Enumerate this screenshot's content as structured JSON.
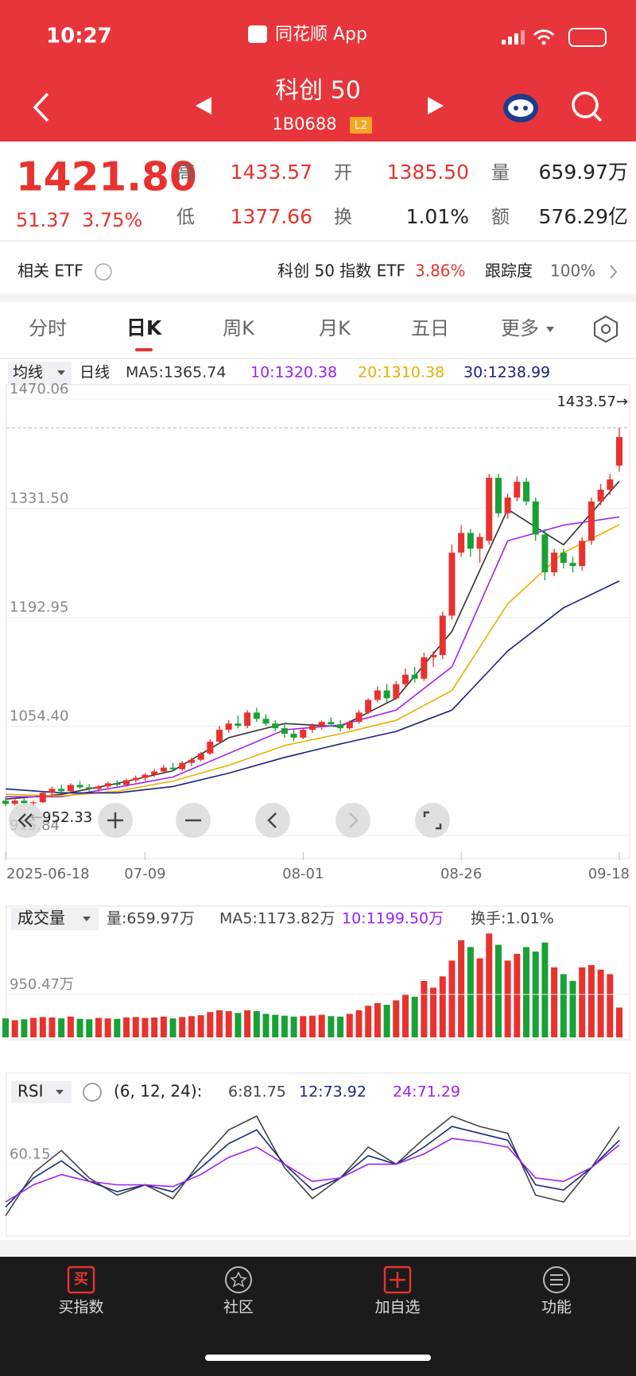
{
  "status": {
    "time": "10:27",
    "app": "同花顺 App"
  },
  "header": {
    "title": "科创 50",
    "code": "1B0688",
    "badge": "L2"
  },
  "quote": {
    "price": "1421.80",
    "change": "51.37",
    "change_pct": "3.75%",
    "fields": [
      {
        "label": "高",
        "value": "1433.57"
      },
      {
        "label": "开",
        "value": "1385.50"
      },
      {
        "label": "量",
        "value": "659.97万"
      },
      {
        "label": "低",
        "value": "1377.66"
      },
      {
        "label": "换",
        "value": "1.01%"
      },
      {
        "label": "额",
        "value": "576.29亿"
      }
    ]
  },
  "etf": {
    "label": "相关 ETF",
    "name": "科创 50 指数 ETF",
    "pct": "3.86%",
    "tracking_label": "跟踪度",
    "tracking": "100%"
  },
  "tabs": [
    "分时",
    "日K",
    "周K",
    "月K",
    "五日",
    "更多"
  ],
  "chart_data": [
    {
      "type": "candlestick",
      "selector": "均线",
      "period": "日线",
      "up_color": "#e8322f",
      "down_color": "#18a136",
      "xlim": [
        0,
        66
      ],
      "ylim": [
        915.84,
        1470.06
      ],
      "yticks": [
        915.84,
        {
          "value": 1054.4,
          "label": "1054.40"
        },
        1192.95,
        {
          "value": 1331.5,
          "label": "1331.50"
        },
        1470.06
      ],
      "xticks": [
        {
          "value": 0,
          "label": "2025-06-18"
        },
        {
          "value": 15,
          "label": "07-09"
        },
        {
          "value": 32,
          "label": "08-01"
        },
        {
          "value": 49,
          "label": "08-26"
        },
        {
          "value": 66,
          "label": "09-18"
        }
      ],
      "max_label": "1433.57→",
      "min_label": "←952.33",
      "ohlc": [
        [
          960,
          965,
          953,
          956
        ],
        [
          956,
          962,
          954,
          960
        ],
        [
          960,
          963,
          955,
          957
        ],
        [
          957,
          960,
          952.33,
          958
        ],
        [
          958,
          972,
          957,
          970
        ],
        [
          970,
          978,
          966,
          975
        ],
        [
          975,
          980,
          970,
          972
        ],
        [
          972,
          982,
          970,
          980
        ],
        [
          980,
          985,
          975,
          977
        ],
        [
          977,
          981,
          972,
          975
        ],
        [
          975,
          980,
          970,
          978
        ],
        [
          978,
          984,
          974,
          982
        ],
        [
          982,
          986,
          978,
          980
        ],
        [
          980,
          988,
          978,
          986
        ],
        [
          986,
          992,
          983,
          989
        ],
        [
          989,
          995,
          985,
          993
        ],
        [
          993,
          1000,
          990,
          997
        ],
        [
          997,
          1005,
          994,
          1002
        ],
        [
          1002,
          1008,
          998,
          1000
        ],
        [
          1000,
          1010,
          998,
          1008
        ],
        [
          1008,
          1015,
          1004,
          1012
        ],
        [
          1012,
          1022,
          1010,
          1020
        ],
        [
          1020,
          1038,
          1018,
          1035
        ],
        [
          1035,
          1055,
          1032,
          1050
        ],
        [
          1050,
          1062,
          1046,
          1058
        ],
        [
          1058,
          1068,
          1052,
          1055
        ],
        [
          1055,
          1075,
          1052,
          1072
        ],
        [
          1072,
          1078,
          1060,
          1064
        ],
        [
          1064,
          1070,
          1055,
          1058
        ],
        [
          1058,
          1062,
          1048,
          1052
        ],
        [
          1052,
          1058,
          1040,
          1045
        ],
        [
          1045,
          1050,
          1035,
          1040
        ],
        [
          1040,
          1052,
          1038,
          1050
        ],
        [
          1050,
          1058,
          1046,
          1055
        ],
        [
          1055,
          1062,
          1050,
          1060
        ],
        [
          1060,
          1066,
          1054,
          1057
        ],
        [
          1057,
          1062,
          1048,
          1052
        ],
        [
          1052,
          1062,
          1050,
          1060
        ],
        [
          1060,
          1075,
          1058,
          1072
        ],
        [
          1072,
          1090,
          1070,
          1088
        ],
        [
          1088,
          1105,
          1085,
          1100
        ],
        [
          1100,
          1108,
          1085,
          1090
        ],
        [
          1090,
          1112,
          1088,
          1108
        ],
        [
          1108,
          1128,
          1104,
          1120
        ],
        [
          1120,
          1130,
          1110,
          1115
        ],
        [
          1115,
          1148,
          1112,
          1142
        ],
        [
          1142,
          1150,
          1130,
          1145
        ],
        [
          1145,
          1200,
          1140,
          1195
        ],
        [
          1195,
          1285,
          1190,
          1275
        ],
        [
          1275,
          1310,
          1270,
          1300
        ],
        [
          1300,
          1305,
          1270,
          1280
        ],
        [
          1280,
          1300,
          1262,
          1295
        ],
        [
          1290,
          1375,
          1285,
          1370
        ],
        [
          1370,
          1375,
          1320,
          1325
        ],
        [
          1325,
          1350,
          1318,
          1345
        ],
        [
          1345,
          1372,
          1340,
          1365
        ],
        [
          1365,
          1370,
          1335,
          1340
        ],
        [
          1340,
          1345,
          1290,
          1298
        ],
        [
          1298,
          1305,
          1240,
          1250
        ],
        [
          1250,
          1280,
          1245,
          1275
        ],
        [
          1275,
          1280,
          1255,
          1262
        ],
        [
          1262,
          1270,
          1250,
          1258
        ],
        [
          1258,
          1295,
          1252,
          1290
        ],
        [
          1290,
          1345,
          1285,
          1340
        ],
        [
          1340,
          1362,
          1335,
          1355
        ],
        [
          1355,
          1375,
          1348,
          1368
        ],
        [
          1385.5,
          1433.57,
          1377.66,
          1421.8
        ]
      ],
      "series": [
        {
          "name": "MA5:1365.74",
          "color": "#333333",
          "x": [
            0,
            6,
            12,
            18,
            24,
            30,
            36,
            42,
            48,
            54,
            60,
            66
          ],
          "values": [
            962,
            968,
            982,
            998,
            1040,
            1058,
            1054,
            1090,
            1175,
            1330,
            1285,
            1365.74
          ]
        },
        {
          "name": "10:1320.38",
          "color": "#a020f0",
          "x": [
            0,
            6,
            12,
            18,
            24,
            30,
            36,
            42,
            48,
            54,
            60,
            66
          ],
          "values": [
            965,
            965,
            977,
            990,
            1020,
            1050,
            1056,
            1075,
            1130,
            1290,
            1310,
            1320.38
          ]
        },
        {
          "name": "20:1310.38",
          "color": "#e8b000",
          "x": [
            0,
            6,
            12,
            18,
            24,
            30,
            36,
            42,
            48,
            54,
            60,
            66
          ],
          "values": [
            968,
            966,
            972,
            985,
            1005,
            1030,
            1045,
            1062,
            1100,
            1210,
            1275,
            1310.38
          ]
        },
        {
          "name": "30:1238.99",
          "color": "#1a237e",
          "x": [
            0,
            6,
            12,
            18,
            24,
            30,
            36,
            42,
            48,
            54,
            60,
            66
          ],
          "values": [
            975,
            970,
            970,
            978,
            995,
            1015,
            1032,
            1048,
            1075,
            1150,
            1205,
            1238.99
          ]
        }
      ]
    },
    {
      "type": "bar",
      "selector": "成交量",
      "legend": [
        {
          "text": "量:659.97万",
          "color": "#444444"
        },
        {
          "text": "MA5:1173.82万",
          "color": "#444444"
        },
        {
          "text": "10:1199.50万",
          "color": "#a020f0"
        },
        {
          "text": "换手:1.01%",
          "color": "#444444"
        }
      ],
      "xlim": [
        0,
        66
      ],
      "ylim": [
        0,
        2376
      ],
      "yticks": [
        {
          "value": 950.47,
          "label": "950.47万"
        }
      ],
      "values": [
        420,
        380,
        400,
        430,
        450,
        440,
        420,
        460,
        410,
        400,
        430,
        420,
        410,
        440,
        450,
        430,
        440,
        460,
        420,
        450,
        470,
        490,
        560,
        600,
        580,
        540,
        600,
        580,
        520,
        500,
        480,
        460,
        470,
        480,
        500,
        470,
        460,
        520,
        600,
        700,
        760,
        720,
        820,
        950,
        900,
        1250,
        1100,
        1350,
        1700,
        2150,
        2000,
        1750,
        2300,
        2050,
        1700,
        1850,
        2000,
        1900,
        2100,
        1550,
        1400,
        1250,
        1550,
        1600,
        1500,
        1400,
        659.97
      ]
    },
    {
      "type": "line",
      "selector": "RSI",
      "params": "(6, 12, 24):",
      "xlim": [
        0,
        66
      ],
      "ylim": [
        20,
        95
      ],
      "yticks": [
        60.15
      ],
      "series": [
        {
          "name": "6:81.75",
          "color": "#444444",
          "x": [
            0,
            3,
            6,
            9,
            12,
            15,
            18,
            21,
            24,
            27,
            30,
            33,
            36,
            39,
            42,
            45,
            48,
            51,
            54,
            57,
            60,
            63,
            66
          ],
          "values": [
            30,
            55,
            68,
            52,
            42,
            48,
            40,
            62,
            80,
            88,
            58,
            40,
            52,
            70,
            60,
            75,
            88,
            82,
            78,
            42,
            38,
            58,
            81.75
          ]
        },
        {
          "name": "12:73.92",
          "color": "#1a2a80",
          "x": [
            0,
            3,
            6,
            9,
            12,
            15,
            18,
            21,
            24,
            27,
            30,
            33,
            36,
            39,
            42,
            45,
            48,
            51,
            54,
            57,
            60,
            63,
            66
          ],
          "values": [
            35,
            52,
            62,
            50,
            44,
            48,
            44,
            58,
            72,
            80,
            60,
            45,
            52,
            65,
            60,
            70,
            82,
            78,
            74,
            48,
            45,
            58,
            73.92
          ]
        },
        {
          "name": "24:71.29",
          "color": "#a020f0",
          "x": [
            0,
            3,
            6,
            9,
            12,
            15,
            18,
            21,
            24,
            27,
            30,
            33,
            36,
            39,
            42,
            45,
            48,
            51,
            54,
            57,
            60,
            63,
            66
          ],
          "values": [
            38,
            48,
            54,
            50,
            48,
            48,
            47,
            54,
            64,
            70,
            60,
            50,
            52,
            60,
            60,
            66,
            75,
            73,
            70,
            52,
            50,
            58,
            71.29
          ]
        }
      ]
    }
  ],
  "nav": {
    "buy_icon": "买",
    "items": [
      "买指数",
      "社区",
      "加自选",
      "功能"
    ]
  }
}
